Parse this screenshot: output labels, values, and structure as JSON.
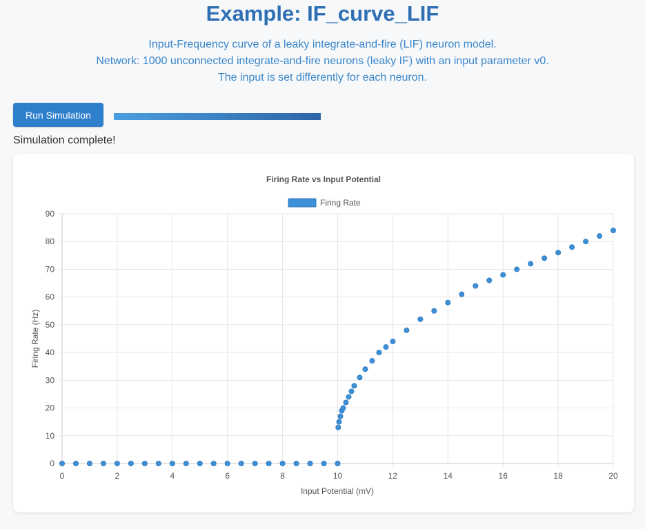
{
  "header": {
    "title": "Example: IF_curve_LIF",
    "description_lines": [
      "Input-Frequency curve of a leaky integrate-and-fire (LIF) neuron model.",
      "Network: 1000 unconnected integrate-and-fire neurons (leaky IF) with an input parameter v0.",
      "The input is set differently for each neuron."
    ]
  },
  "controls": {
    "run_button_label": "Run Simulation",
    "progress_fraction": 1.0,
    "status_text": "Simulation complete!"
  },
  "colors": {
    "accent": "#2f80cc",
    "series": "#3d8fd6",
    "series_border": "#2f78bd"
  },
  "chart_data": {
    "type": "scatter",
    "title": "Firing Rate vs Input Potential",
    "xlabel": "Input Potential (mV)",
    "ylabel": "Firing Rate (Hz)",
    "xlim": [
      0,
      20
    ],
    "ylim": [
      0,
      90
    ],
    "x_ticks": [
      0,
      2,
      4,
      6,
      8,
      10,
      12,
      14,
      16,
      18,
      20
    ],
    "y_ticks": [
      0,
      10,
      20,
      30,
      40,
      50,
      60,
      70,
      80,
      90
    ],
    "legend_position": "top",
    "grid": true,
    "series": [
      {
        "name": "Firing Rate",
        "x": [
          0,
          0.5,
          1,
          1.5,
          2,
          2.5,
          3,
          3.5,
          4,
          4.5,
          5,
          5.5,
          6,
          6.5,
          7,
          7.5,
          8,
          8.5,
          9,
          9.5,
          10,
          10.02,
          10.05,
          10.1,
          10.15,
          10.2,
          10.3,
          10.4,
          10.5,
          10.6,
          10.8,
          11,
          11.25,
          11.5,
          11.75,
          12,
          12.5,
          13,
          13.5,
          14,
          14.5,
          15,
          15.5,
          16,
          16.5,
          17,
          17.5,
          18,
          18.5,
          19,
          19.5,
          20
        ],
        "y": [
          0,
          0,
          0,
          0,
          0,
          0,
          0,
          0,
          0,
          0,
          0,
          0,
          0,
          0,
          0,
          0,
          0,
          0,
          0,
          0,
          0,
          13,
          15,
          17,
          19,
          20,
          22,
          24,
          26,
          28,
          31,
          34,
          37,
          40,
          42,
          44,
          48,
          52,
          55,
          58,
          61,
          64,
          66,
          68,
          70,
          72,
          74,
          76,
          78,
          80,
          82,
          84
        ]
      }
    ]
  }
}
